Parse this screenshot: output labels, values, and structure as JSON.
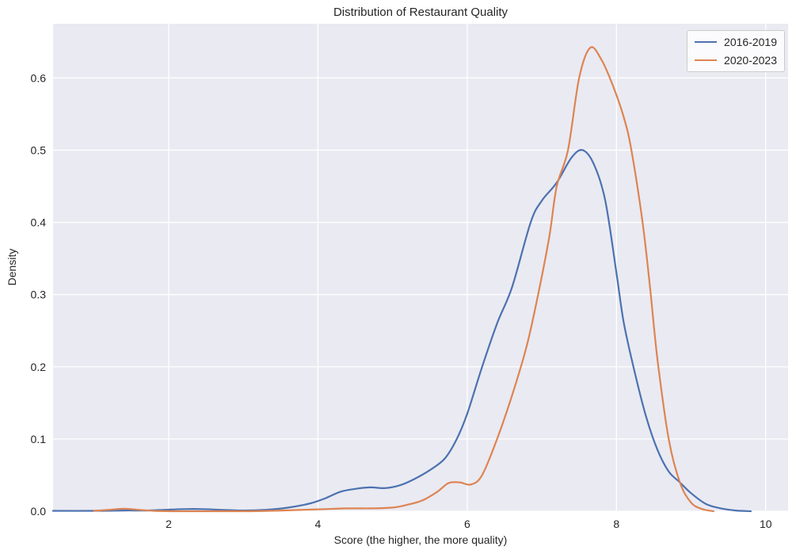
{
  "chart_data": {
    "type": "line",
    "subtype": "kde-density",
    "title": "Distribution of Restaurant Quality",
    "xlabel": "Score (the higher, the more quality)",
    "ylabel": "Density",
    "xlim": [
      0.45,
      10.3
    ],
    "ylim": [
      0,
      0.675
    ],
    "xticks": [
      2,
      4,
      6,
      8,
      10
    ],
    "yticks": [
      0.0,
      0.1,
      0.2,
      0.3,
      0.4,
      0.5,
      0.6
    ],
    "grid": true,
    "legend_position": "upper right",
    "axes_background": "#eaeaf2",
    "grid_color": "#ffffff",
    "text_color": "#262626",
    "series": [
      {
        "name": "2016-2019",
        "color": "#4c72b0",
        "peak": {
          "x": 7.55,
          "y": 0.5
        },
        "x": [
          0.45,
          1.0,
          1.4,
          1.7,
          1.95,
          2.2,
          2.45,
          2.7,
          3.0,
          3.3,
          3.6,
          3.9,
          4.1,
          4.3,
          4.5,
          4.7,
          4.9,
          5.1,
          5.3,
          5.5,
          5.7,
          5.86,
          6.0,
          6.2,
          6.4,
          6.6,
          6.85,
          7.0,
          7.2,
          7.4,
          7.55,
          7.7,
          7.85,
          8.0,
          8.1,
          8.25,
          8.4,
          8.55,
          8.7,
          8.85,
          9.0,
          9.2,
          9.4,
          9.6,
          9.8
        ],
        "y": [
          0.0005,
          0.0005,
          0.001,
          0.001,
          0.002,
          0.003,
          0.003,
          0.002,
          0.001,
          0.002,
          0.005,
          0.011,
          0.018,
          0.027,
          0.031,
          0.033,
          0.032,
          0.036,
          0.045,
          0.057,
          0.073,
          0.1,
          0.135,
          0.2,
          0.26,
          0.31,
          0.4,
          0.43,
          0.455,
          0.49,
          0.5,
          0.48,
          0.43,
          0.33,
          0.26,
          0.19,
          0.13,
          0.085,
          0.055,
          0.04,
          0.025,
          0.01,
          0.004,
          0.001,
          0
        ]
      },
      {
        "name": "2020-2023",
        "color": "#dd8452",
        "peak": {
          "x": 7.65,
          "y": 0.642
        },
        "x": [
          1.0,
          1.2,
          1.4,
          1.6,
          1.8,
          2.1,
          2.6,
          3.1,
          3.5,
          3.8,
          4.1,
          4.4,
          4.7,
          5.0,
          5.2,
          5.4,
          5.6,
          5.75,
          5.9,
          6.05,
          6.2,
          6.4,
          6.6,
          6.8,
          6.95,
          7.1,
          7.2,
          7.35,
          7.5,
          7.65,
          7.8,
          7.95,
          8.1,
          8.2,
          8.35,
          8.45,
          8.55,
          8.7,
          8.85,
          9.0,
          9.15,
          9.3
        ],
        "y": [
          0.0005,
          0.002,
          0.0035,
          0.002,
          0.0005,
          0,
          0,
          0,
          0.001,
          0.002,
          0.003,
          0.004,
          0.004,
          0.005,
          0.009,
          0.015,
          0.027,
          0.039,
          0.04,
          0.037,
          0.05,
          0.1,
          0.16,
          0.23,
          0.3,
          0.38,
          0.45,
          0.5,
          0.6,
          0.642,
          0.625,
          0.59,
          0.545,
          0.5,
          0.4,
          0.31,
          0.21,
          0.1,
          0.04,
          0.012,
          0.003,
          0
        ]
      }
    ]
  }
}
